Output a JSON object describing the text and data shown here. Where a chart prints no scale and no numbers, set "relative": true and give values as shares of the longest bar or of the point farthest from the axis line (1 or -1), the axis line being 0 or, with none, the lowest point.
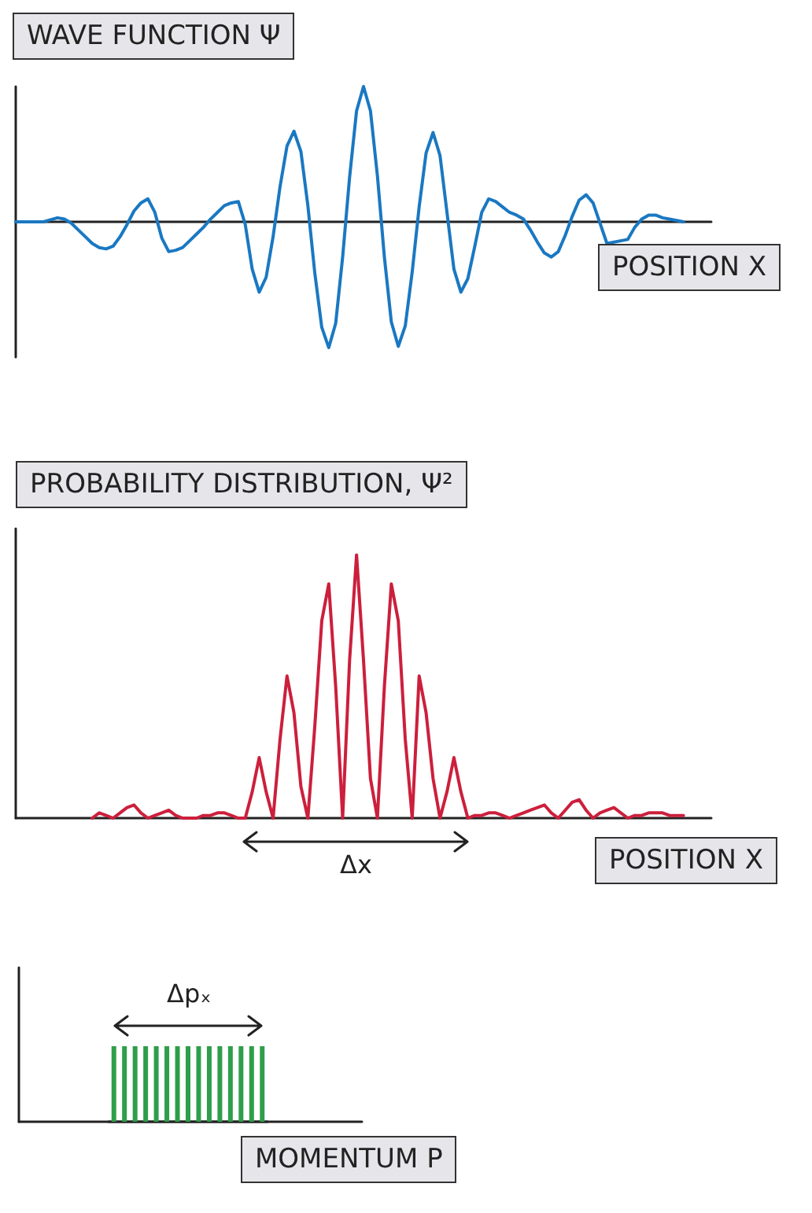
{
  "chart_data": [
    {
      "type": "line",
      "title": "WAVE FUNCTION  Ψ",
      "xlabel": "POSITION X",
      "relative": true,
      "tick_labels": false,
      "line_style": "solid",
      "categories": [
        null,
        null,
        null,
        null,
        null,
        null,
        null,
        null,
        null,
        null,
        null,
        null,
        null,
        null,
        null,
        null,
        null,
        null,
        null,
        null,
        null,
        null,
        null,
        null,
        null,
        null,
        null,
        null,
        null,
        null,
        null,
        null,
        null,
        null,
        null,
        null,
        null,
        null,
        null,
        null,
        null,
        null,
        null,
        null,
        null,
        null,
        null,
        null,
        null,
        null,
        null,
        null,
        null,
        null,
        null,
        null,
        null,
        null,
        null,
        null,
        null,
        null,
        null,
        null,
        null,
        null,
        null,
        null,
        null,
        null,
        null,
        null,
        null,
        null,
        null,
        null,
        null,
        null,
        null,
        null,
        null,
        null,
        null,
        null,
        null,
        null,
        null,
        null,
        null,
        null,
        null,
        null,
        null,
        null,
        null,
        null,
        null,
        null,
        null,
        null,
        null
      ],
      "series": [
        {
          "color": "#1a78c2",
          "values": [
            0,
            0,
            0,
            0,
            0,
            0.015,
            0.03,
            0.02,
            -0.01,
            -0.06,
            -0.11,
            -0.16,
            -0.19,
            -0.2,
            -0.18,
            -0.11,
            -0.02,
            0.08,
            0.14,
            0.17,
            0.07,
            -0.12,
            -0.22,
            -0.21,
            -0.19,
            -0.14,
            -0.09,
            -0.04,
            0.02,
            0.07,
            0.12,
            0.14,
            0.15,
            -0.02,
            -0.35,
            -0.52,
            -0.41,
            -0.11,
            0.26,
            0.56,
            0.67,
            0.52,
            0.12,
            -0.38,
            -0.78,
            -0.93,
            -0.75,
            -0.26,
            0.33,
            0.82,
            1,
            0.82,
            0.34,
            -0.26,
            -0.74,
            -0.92,
            -0.77,
            -0.37,
            0.11,
            0.51,
            0.66,
            0.49,
            0.07,
            -0.35,
            -0.52,
            -0.42,
            -0.18,
            0.07,
            0.17,
            0.15,
            0.11,
            0.07,
            0.05,
            0.02,
            -0.06,
            -0.15,
            -0.23,
            -0.26,
            -0.22,
            -0.1,
            0.04,
            0.16,
            0.2,
            0.14,
            -0.01,
            -0.16,
            null,
            null,
            -0.13,
            -0.04,
            0.02,
            0.05,
            0.05,
            0.03,
            0.02,
            0.01,
            0,
            null,
            null,
            null,
            null
          ]
        }
      ]
    },
    {
      "type": "line",
      "title": "PROBABILITY DISTRIBUTION, Ψ²",
      "xlabel": "POSITION X",
      "annotations": [
        "Δx"
      ],
      "relative": true,
      "tick_labels": false,
      "line_style": "solid",
      "categories": [
        null,
        null,
        null,
        null,
        null,
        null,
        null,
        null,
        null,
        null,
        null,
        null,
        null,
        null,
        null,
        null,
        null,
        null,
        null,
        null,
        null,
        null,
        null,
        null,
        null,
        null,
        null,
        null,
        null,
        null,
        null,
        null,
        null,
        null,
        null,
        null,
        null,
        null,
        null,
        null,
        null,
        null,
        null,
        null,
        null,
        null,
        null,
        null,
        null,
        null,
        null,
        null,
        null,
        null,
        null,
        null,
        null,
        null,
        null,
        null,
        null,
        null,
        null,
        null,
        null,
        null,
        null,
        null,
        null,
        null,
        null,
        null,
        null,
        null,
        null,
        null,
        null,
        null,
        null,
        null,
        null,
        null,
        null,
        null,
        null,
        null,
        null,
        null,
        null,
        null,
        null,
        null,
        null,
        null,
        null,
        null,
        null,
        null,
        null,
        null,
        null
      ],
      "series": [
        {
          "color": "#cc1f3c",
          "values": [
            null,
            null,
            null,
            null,
            null,
            null,
            null,
            null,
            null,
            null,
            null,
            0,
            0.02,
            0.01,
            0,
            0.02,
            0.04,
            0.05,
            0.02,
            0,
            0.01,
            0.02,
            0.03,
            0.01,
            0,
            0,
            0,
            0.01,
            0.01,
            0.02,
            0.02,
            0.01,
            0,
            0,
            0.1,
            0.23,
            0.1,
            0,
            0.3,
            0.54,
            0.4,
            0.12,
            0,
            0.35,
            0.75,
            0.89,
            0.5,
            0,
            0.6,
            1,
            0.6,
            0.15,
            0,
            0.5,
            0.89,
            0.75,
            0.3,
            0,
            0.54,
            0.4,
            0.15,
            0,
            0.1,
            0.23,
            0.1,
            0,
            0.01,
            0.01,
            0.02,
            0.02,
            0.01,
            0,
            0.01,
            0.02,
            0.03,
            0.04,
            0.05,
            0.02,
            0,
            0.03,
            0.06,
            0.07,
            0.03,
            0,
            0.02,
            0.03,
            0.04,
            0.02,
            0,
            0.01,
            0.01,
            0.02,
            0.02,
            0.02,
            0.01,
            0.01,
            0.01,
            null,
            null,
            null,
            null
          ]
        }
      ]
    },
    {
      "type": "bar",
      "xlabel": "MOMENTUM P",
      "annotations": [
        "Δpₓ"
      ],
      "relative": true,
      "tick_labels": false,
      "categories": [
        null,
        null,
        null,
        null,
        null,
        null,
        null,
        null,
        null,
        null,
        null,
        null,
        null,
        null,
        null
      ],
      "series": [
        {
          "color": "#2e9e4a",
          "values": [
            1,
            1,
            1,
            1,
            1,
            1,
            1,
            1,
            1,
            1,
            1,
            1,
            1,
            1,
            1
          ]
        }
      ]
    }
  ]
}
